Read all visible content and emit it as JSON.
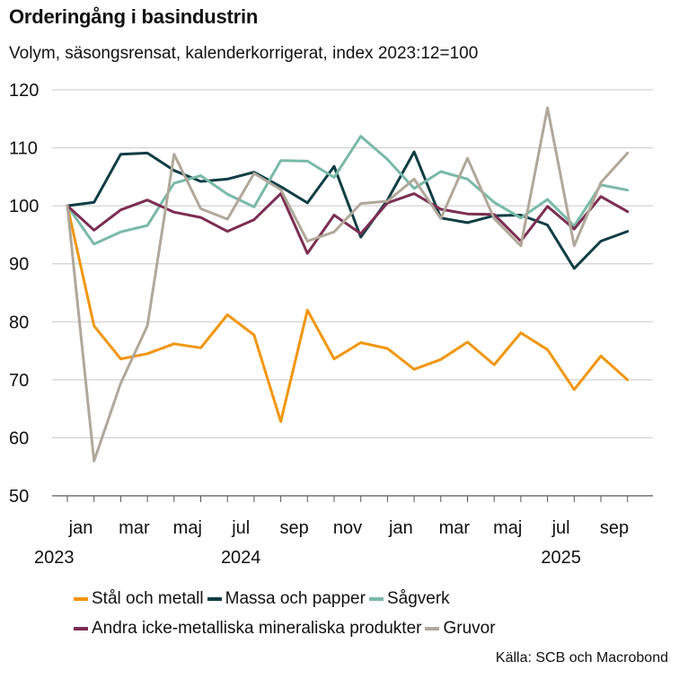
{
  "chart_data": {
    "type": "line",
    "title": "Orderingång i basindustrin",
    "subtitle": "Volym, säsongsrensat, kalenderkorrigerat, index 2023:12=100",
    "source": "Källa: SCB och Macrobond",
    "x": [
      "2023-12",
      "2024-01",
      "2024-02",
      "2024-03",
      "2024-04",
      "2024-05",
      "2024-06",
      "2024-07",
      "2024-08",
      "2024-09",
      "2024-10",
      "2024-11",
      "2024-12",
      "2025-01",
      "2025-02",
      "2025-03",
      "2025-04",
      "2025-05",
      "2025-06",
      "2025-07",
      "2025-08",
      "2025-09"
    ],
    "x_ticks": [
      {
        "label": "jan",
        "index": 0
      },
      {
        "label": "mar",
        "index": 2
      },
      {
        "label": "maj",
        "index": 4
      },
      {
        "label": "jul",
        "index": 6
      },
      {
        "label": "sep",
        "index": 8
      },
      {
        "label": "nov",
        "index": 10
      },
      {
        "label": "jan",
        "index": 12
      },
      {
        "label": "mar",
        "index": 14
      },
      {
        "label": "maj",
        "index": 16
      },
      {
        "label": "jul",
        "index": 18
      },
      {
        "label": "sep",
        "index": 20
      }
    ],
    "year_labels": [
      {
        "label": "2023",
        "index": -1
      },
      {
        "label": "2024",
        "index": 6
      },
      {
        "label": "2025",
        "index": 18
      }
    ],
    "ylim": [
      50,
      120
    ],
    "yticks": [
      50,
      60,
      70,
      80,
      90,
      100,
      110,
      120
    ],
    "grid": true,
    "series": [
      {
        "name": "Stål och metall",
        "color": "#f0960c",
        "values": [
          100,
          79.3,
          73.6,
          74.5,
          76.2,
          75.5,
          81.2,
          77.7,
          62.8,
          82.0,
          73.6,
          76.4,
          75.4,
          71.8,
          73.5,
          76.5,
          72.6,
          78.1,
          75.2,
          68.3,
          74.1,
          70.0
        ]
      },
      {
        "name": "Massa och papper",
        "color": "#0f3d45",
        "values": [
          100,
          100.6,
          108.9,
          109.1,
          106.1,
          104.2,
          104.6,
          105.8,
          103.3,
          100.5,
          106.8,
          94.6,
          101.0,
          109.3,
          97.9,
          97.1,
          98.3,
          98.4,
          96.7,
          89.2,
          93.9,
          95.6
        ]
      },
      {
        "name": "Sågverk",
        "color": "#7ab9a8",
        "values": [
          100,
          93.4,
          95.5,
          96.6,
          103.9,
          105.2,
          102.0,
          99.8,
          107.8,
          107.7,
          104.9,
          112.0,
          108.0,
          103.0,
          105.9,
          104.6,
          100.6,
          97.9,
          101.1,
          96.5,
          103.6,
          102.7
        ]
      },
      {
        "name": "Andra icke-metalliska mineraliska produkter",
        "color": "#7b2e52",
        "values": [
          100,
          95.8,
          99.3,
          101.0,
          98.9,
          98.0,
          95.6,
          97.6,
          102.1,
          91.8,
          98.4,
          95.2,
          100.5,
          102.1,
          99.4,
          98.6,
          98.5,
          93.9,
          99.9,
          96.0,
          101.6,
          99.0
        ]
      },
      {
        "name": "Gruvor",
        "color": "#b0a89a",
        "values": [
          100,
          56.0,
          69.4,
          79.3,
          108.9,
          99.5,
          97.7,
          105.6,
          102.8,
          93.9,
          95.5,
          100.4,
          100.8,
          104.6,
          97.8,
          108.2,
          97.8,
          93.1,
          116.9,
          93.1,
          104.0,
          109.1
        ]
      }
    ]
  },
  "legend": {
    "row1": [
      "Stål och metall",
      "Massa och papper",
      "Sågverk"
    ],
    "row2": [
      "Andra icke-metalliska mineraliska produkter",
      "Gruvor"
    ]
  }
}
